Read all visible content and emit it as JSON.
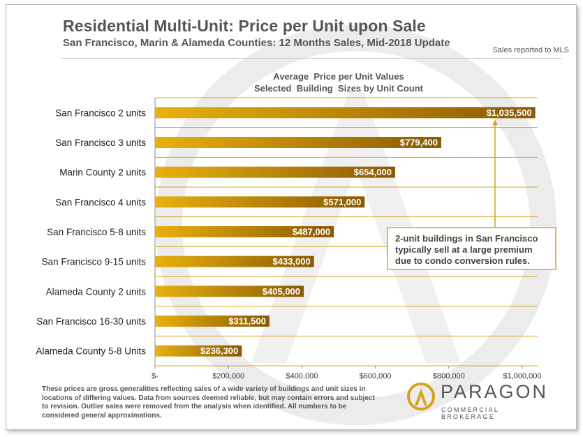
{
  "header": {
    "title": "Residential Multi-Unit: Price per Unit upon Sale",
    "subtitle": "San Francisco, Marin & Alameda Counties: 12 Months Sales, Mid-2018 Update",
    "source_note": "Sales reported to MLS"
  },
  "chart_data": {
    "type": "bar",
    "orientation": "horizontal",
    "title": "Average  Price per Unit Values",
    "subtitle": "Selected  Building  Sizes by Unit Count",
    "categories": [
      "San Francisco 2 units",
      "San Francisco 3 units",
      "Marin County 2 units",
      "San Francisco 4 units",
      "San Francisco 5-8 units",
      "San Francisco 9-15 units",
      "Alameda County 2 units",
      "San Francisco 16-30 units",
      "Alameda County 5-8 Units"
    ],
    "values": [
      1035500,
      779400,
      654000,
      571000,
      487000,
      433000,
      405000,
      311500,
      236300
    ],
    "value_labels": [
      "$1,035,500",
      "$779,400",
      "$654,000",
      "$571,000",
      "$487,000",
      "$433,000",
      "$405,000",
      "$311,500",
      "$236,300"
    ],
    "xlim": [
      0,
      1000000
    ],
    "xticks": [
      0,
      200000,
      400000,
      600000,
      800000,
      1000000
    ],
    "xtick_labels": [
      "$-",
      "$200,000",
      "$400,000",
      "$600,000",
      "$800,000",
      "$1,000,000"
    ],
    "grid": true,
    "bar_gradient": [
      "#e8b10e",
      "#8a5a06"
    ],
    "annotation": {
      "lines": [
        "2-unit buildings in San Francisco",
        "typically sell at a large premium",
        "due to condo conversion rules."
      ],
      "target_category": "San Francisco 2 units"
    }
  },
  "footer": {
    "disclaimer": "These prices are gross generalities reflecting sales of a wide variety of buildings and unit sizes in locations of differing values. Data from sources deemed reliable, but may contain errors and subject to revision. Outlier sales were removed from the analysis when identified. All numbers to be considered general approximations.",
    "logo_name": "PARAGON",
    "logo_tagline": "COMMERCIAL BROKERAGE"
  },
  "colors": {
    "gold": "#c8920c",
    "gridline": "#d4a520",
    "text": "#555555"
  }
}
